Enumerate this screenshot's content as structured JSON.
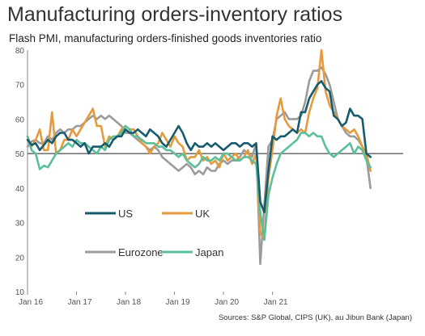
{
  "title": "Manufacturing orders-inventory ratios",
  "subtitle": "Flash PMI, manufacturing orders-finished goods inventories ratio",
  "source": "Sources: S&P Global, CIPS (UK), au Jibun Bank (Japan)",
  "chart_data": {
    "type": "line",
    "ylim": [
      10,
      80
    ],
    "yticks": [
      "80",
      "70",
      "60",
      "50",
      "40",
      "30",
      "20",
      "10"
    ],
    "xticks": [
      "Jan 16",
      "Jan 17",
      "Jan 18",
      "Jan 19",
      "Jan 20",
      "Jan 21"
    ],
    "reference_line": 50,
    "grid": false,
    "x_start": "Jan 16",
    "series": [
      {
        "name": "US",
        "color": "#165c6e",
        "values": [
          54,
          52.5,
          53,
          51,
          52.5,
          54,
          53,
          55,
          56,
          56,
          54,
          54,
          53,
          52,
          53,
          50,
          52,
          52,
          52,
          53,
          52,
          54,
          55,
          55,
          57,
          56,
          56,
          57,
          56,
          55,
          57,
          56,
          55,
          53,
          52,
          54,
          56,
          58,
          56,
          53,
          51,
          53,
          52,
          52,
          53,
          52,
          53,
          52,
          51,
          52,
          53,
          53,
          52,
          53,
          53,
          52,
          53,
          36,
          33,
          45,
          55,
          54,
          55,
          55,
          56,
          57,
          56,
          62,
          62,
          66,
          68,
          70,
          71,
          69,
          68,
          61,
          60,
          58,
          59,
          63,
          61,
          61,
          60,
          50,
          49
        ]
      },
      {
        "name": "UK",
        "color": "#e69a3c",
        "values": [
          55,
          52,
          54,
          57,
          51,
          51,
          62,
          50,
          51,
          54,
          54,
          57,
          55,
          57,
          59,
          61,
          63,
          58,
          58,
          52,
          55,
          54,
          55,
          57,
          58,
          57,
          57,
          55,
          53,
          52,
          50,
          52,
          53,
          56,
          54,
          52,
          55,
          53,
          52,
          48,
          49,
          49,
          51,
          48,
          49,
          47,
          48,
          46,
          50,
          48,
          49,
          50,
          48,
          49,
          51,
          47,
          50,
          27,
          25,
          43,
          51,
          61,
          66,
          60,
          58,
          57,
          56,
          57,
          56,
          62,
          66,
          69,
          80,
          68,
          64,
          62,
          60,
          58,
          57,
          56,
          57,
          55,
          52,
          50,
          45
        ]
      },
      {
        "name": "Eurozone",
        "color": "#9b9b9b",
        "values": [
          52,
          53.5,
          54,
          53,
          53,
          55,
          54,
          56,
          57,
          56,
          57,
          57,
          58,
          58,
          59,
          60,
          61,
          60,
          61,
          60,
          61,
          60,
          59,
          58,
          56,
          56,
          55,
          54,
          53,
          52,
          51,
          52,
          51,
          49,
          48,
          47,
          46,
          45,
          46,
          47,
          46,
          44,
          45,
          44,
          46,
          45,
          45,
          47,
          48,
          47,
          48,
          48,
          49,
          51,
          50,
          49,
          53,
          18,
          35,
          52,
          54,
          60,
          61,
          62,
          60,
          60,
          60,
          61,
          65,
          71,
          74,
          74,
          75,
          73,
          70,
          65,
          60,
          58,
          56,
          55,
          55,
          54,
          52,
          49,
          40
        ]
      },
      {
        "name": "Japan",
        "color": "#5cbf9c",
        "values": [
          55,
          51,
          50,
          45.5,
          46.5,
          46,
          48,
          50,
          51,
          52,
          53,
          52,
          54,
          53,
          53,
          52,
          51,
          50,
          52,
          51,
          54,
          55,
          55,
          56,
          58,
          57,
          55,
          55,
          54,
          53,
          53,
          53,
          52,
          52,
          51,
          51,
          50,
          49,
          50,
          48,
          47,
          46,
          47,
          49,
          48,
          48,
          49,
          48,
          50,
          50,
          49,
          48,
          48,
          49,
          49,
          48,
          47,
          33,
          25,
          38,
          43,
          47,
          50,
          51,
          52,
          53,
          54,
          56,
          56,
          55,
          56,
          55,
          55,
          52,
          50,
          49,
          50,
          51,
          52,
          53,
          50,
          52,
          51,
          48,
          46
        ]
      }
    ]
  }
}
